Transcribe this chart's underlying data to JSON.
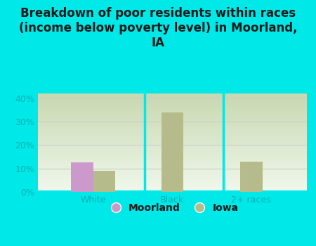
{
  "title": "Breakdown of poor residents within races\n(income below poverty level) in Moorland,\nIA",
  "categories": [
    "White",
    "Black",
    "2+ races"
  ],
  "moorland_values": [
    12.5,
    null,
    null
  ],
  "iowa_values": [
    9.0,
    34.0,
    13.0
  ],
  "moorland_color": "#cc99cc",
  "iowa_color": "#b5bb8a",
  "background_color": "#00e8e8",
  "plot_bg_top": "#c8d8b0",
  "plot_bg_bottom": "#f0f8f0",
  "ylim": [
    0,
    42
  ],
  "yticks": [
    0,
    10,
    20,
    30,
    40
  ],
  "ytick_labels": [
    "0%",
    "10%",
    "20%",
    "30%",
    "40%"
  ],
  "bar_width": 0.28,
  "title_fontsize": 12,
  "legend_labels": [
    "Moorland",
    "Iowa"
  ],
  "tick_color": "#00b0b0",
  "grid_color": "#cccccc"
}
